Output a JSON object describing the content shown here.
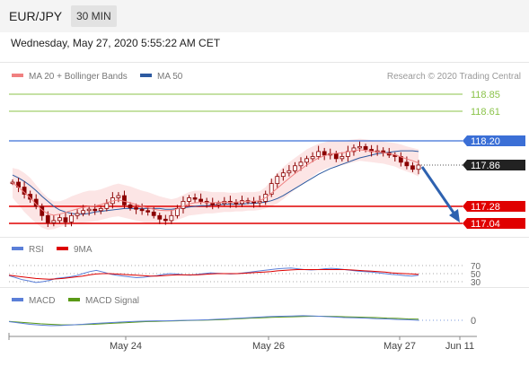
{
  "header": {
    "symbol": "EUR/JPY",
    "timeframe": "30 MIN",
    "timestamp": "Wednesday, May 27, 2020 5:55:22 AM CET"
  },
  "legend": {
    "ma20": "MA 20 + Bollinger Bands",
    "ma50": "MA 50",
    "credit": "Research © 2020 Trading Central",
    "rsi": "RSI",
    "rsi_ma": "9MA",
    "macd": "MACD",
    "macd_signal": "MACD Signal"
  },
  "colors": {
    "ma20": "#f08080",
    "ma50": "#2d5aa0",
    "bollinger_fill": "#fbe0e0",
    "candle": "#8b0000",
    "resistance": "#3b6fd6",
    "support": "#e00000",
    "target": "#8bc34a",
    "arrow": "#2e62b0",
    "rsi": "#5b7fd8",
    "rsi_ma": "#dd0000",
    "macd": "#5b7fd8",
    "macd_signal": "#5a9a16"
  },
  "chart_data": {
    "type": "line",
    "title": "EUR/JPY 30 MIN",
    "price_ylim": [
      116.9,
      119.0
    ],
    "levels": {
      "targets": [
        "118.85",
        "118.61"
      ],
      "resistance": "118.20",
      "last": "117.86",
      "supports": [
        "117.28",
        "117.04"
      ]
    },
    "xticks": [
      "May 24",
      "May 26",
      "May 27",
      "Jun 11"
    ],
    "close": [
      117.62,
      117.55,
      117.45,
      117.38,
      117.28,
      117.15,
      117.05,
      117.08,
      117.12,
      117.06,
      117.15,
      117.18,
      117.22,
      117.24,
      117.22,
      117.25,
      117.32,
      117.4,
      117.43,
      117.3,
      117.26,
      117.24,
      117.22,
      117.2,
      117.15,
      117.1,
      117.08,
      117.15,
      117.25,
      117.35,
      117.4,
      117.38,
      117.35,
      117.33,
      117.3,
      117.32,
      117.35,
      117.33,
      117.32,
      117.36,
      117.35,
      117.33,
      117.35,
      117.45,
      117.6,
      117.7,
      117.75,
      117.78,
      117.85,
      117.9,
      117.95,
      117.98,
      118.05,
      118.0,
      118.02,
      117.95,
      117.98,
      118.05,
      118.1,
      118.12,
      118.08,
      118.05,
      118.06,
      118.03,
      118.0,
      117.98,
      117.9,
      117.85,
      117.8,
      117.86
    ],
    "bollinger_upper": [
      117.82,
      117.8,
      117.75,
      117.68,
      117.58,
      117.48,
      117.4,
      117.35,
      117.35,
      117.38,
      117.42,
      117.45,
      117.48,
      117.5,
      117.5,
      117.52,
      117.55,
      117.58,
      117.6,
      117.58,
      117.56,
      117.53,
      117.5,
      117.48,
      117.45,
      117.42,
      117.4,
      117.38,
      117.4,
      117.44,
      117.48,
      117.5,
      117.5,
      117.49,
      117.48,
      117.48,
      117.48,
      117.47,
      117.47,
      117.48,
      117.48,
      117.48,
      117.49,
      117.55,
      117.65,
      117.75,
      117.83,
      117.9,
      117.96,
      118.02,
      118.08,
      118.12,
      118.16,
      118.18,
      118.2,
      118.2,
      118.2,
      118.21,
      118.22,
      118.23,
      118.22,
      118.21,
      118.2,
      118.19,
      118.18,
      118.17,
      118.15,
      118.12,
      118.1,
      118.08
    ],
    "bollinger_lower": [
      117.4,
      117.3,
      117.2,
      117.12,
      117.04,
      116.98,
      116.95,
      116.96,
      116.99,
      117.01,
      117.02,
      117.04,
      117.05,
      117.06,
      117.07,
      117.09,
      117.11,
      117.13,
      117.14,
      117.12,
      117.1,
      117.08,
      117.06,
      117.04,
      117.03,
      117.03,
      117.04,
      117.06,
      117.09,
      117.12,
      117.15,
      117.16,
      117.17,
      117.18,
      117.18,
      117.19,
      117.2,
      117.2,
      117.21,
      117.21,
      117.22,
      117.22,
      117.23,
      117.25,
      117.28,
      117.32,
      117.38,
      117.45,
      117.52,
      117.58,
      117.64,
      117.7,
      117.76,
      117.8,
      117.83,
      117.85,
      117.86,
      117.88,
      117.9,
      117.92,
      117.91,
      117.9,
      117.89,
      117.88,
      117.86,
      117.84,
      117.8,
      117.77,
      117.74,
      117.7
    ],
    "ma50": [
      117.72,
      117.68,
      117.63,
      117.57,
      117.5,
      117.42,
      117.35,
      117.28,
      117.23,
      117.2,
      117.18,
      117.17,
      117.17,
      117.18,
      117.2,
      117.21,
      117.22,
      117.23,
      117.24,
      117.25,
      117.25,
      117.25,
      117.25,
      117.25,
      117.25,
      117.25,
      117.24,
      117.24,
      117.25,
      117.26,
      117.27,
      117.28,
      117.29,
      117.29,
      117.3,
      117.3,
      117.31,
      117.31,
      117.31,
      117.31,
      117.32,
      117.32,
      117.33,
      117.34,
      117.36,
      117.39,
      117.43,
      117.48,
      117.53,
      117.58,
      117.63,
      117.68,
      117.73,
      117.77,
      117.81,
      117.84,
      117.87,
      117.9,
      117.93,
      117.96,
      117.98,
      118.0,
      118.02,
      118.03,
      118.04,
      118.05,
      118.06,
      118.06,
      118.06,
      118.05
    ],
    "rsi": [
      45,
      40,
      35,
      32,
      28,
      30,
      33,
      38,
      40,
      42,
      45,
      50,
      55,
      58,
      54,
      49,
      46,
      44,
      42,
      40,
      41,
      43,
      45,
      48,
      50,
      49,
      47,
      46,
      48,
      50,
      52,
      51,
      50,
      49,
      50,
      52,
      54,
      56,
      58,
      60,
      62,
      63,
      64,
      62,
      60,
      59,
      60,
      62,
      63,
      62,
      60,
      58,
      56,
      55,
      54,
      52,
      50,
      48,
      47,
      45,
      44,
      46
    ],
    "rsi_ma": [
      46,
      44,
      42,
      40,
      38,
      37,
      36,
      37,
      38,
      40,
      42,
      44,
      47,
      49,
      50,
      50,
      49,
      48,
      47,
      46,
      45,
      44,
      44,
      45,
      46,
      47,
      47,
      47,
      47,
      48,
      49,
      50,
      50,
      50,
      50,
      51,
      52,
      53,
      54,
      55,
      57,
      58,
      59,
      60,
      60,
      60,
      60,
      60,
      60,
      60,
      60,
      59,
      58,
      57,
      56,
      55,
      54,
      52,
      51,
      50,
      49,
      48
    ],
    "macd": [
      -0.05,
      -0.1,
      -0.15,
      -0.18,
      -0.2,
      -0.19,
      -0.17,
      -0.15,
      -0.12,
      -0.1,
      -0.08,
      -0.06,
      -0.04,
      -0.03,
      -0.02,
      -0.02,
      -0.01,
      0.0,
      0.01,
      0.02,
      0.04,
      0.06,
      0.08,
      0.1,
      0.12,
      0.14,
      0.15,
      0.16,
      0.17,
      0.16,
      0.14,
      0.12,
      0.1,
      0.09,
      0.08,
      0.06,
      0.05,
      0.03,
      0.02,
      0.0
    ],
    "macd_signal": [
      -0.04,
      -0.07,
      -0.1,
      -0.13,
      -0.15,
      -0.17,
      -0.17,
      -0.16,
      -0.15,
      -0.13,
      -0.11,
      -0.09,
      -0.07,
      -0.05,
      -0.04,
      -0.03,
      -0.02,
      -0.01,
      0.0,
      0.01,
      0.02,
      0.04,
      0.06,
      0.08,
      0.09,
      0.11,
      0.12,
      0.13,
      0.14,
      0.15,
      0.15,
      0.14,
      0.13,
      0.12,
      0.11,
      0.1,
      0.08,
      0.07,
      0.05,
      0.04
    ],
    "rsi_ticks": [
      "70",
      "50",
      "30"
    ],
    "macd_ticks": [
      "0"
    ]
  }
}
